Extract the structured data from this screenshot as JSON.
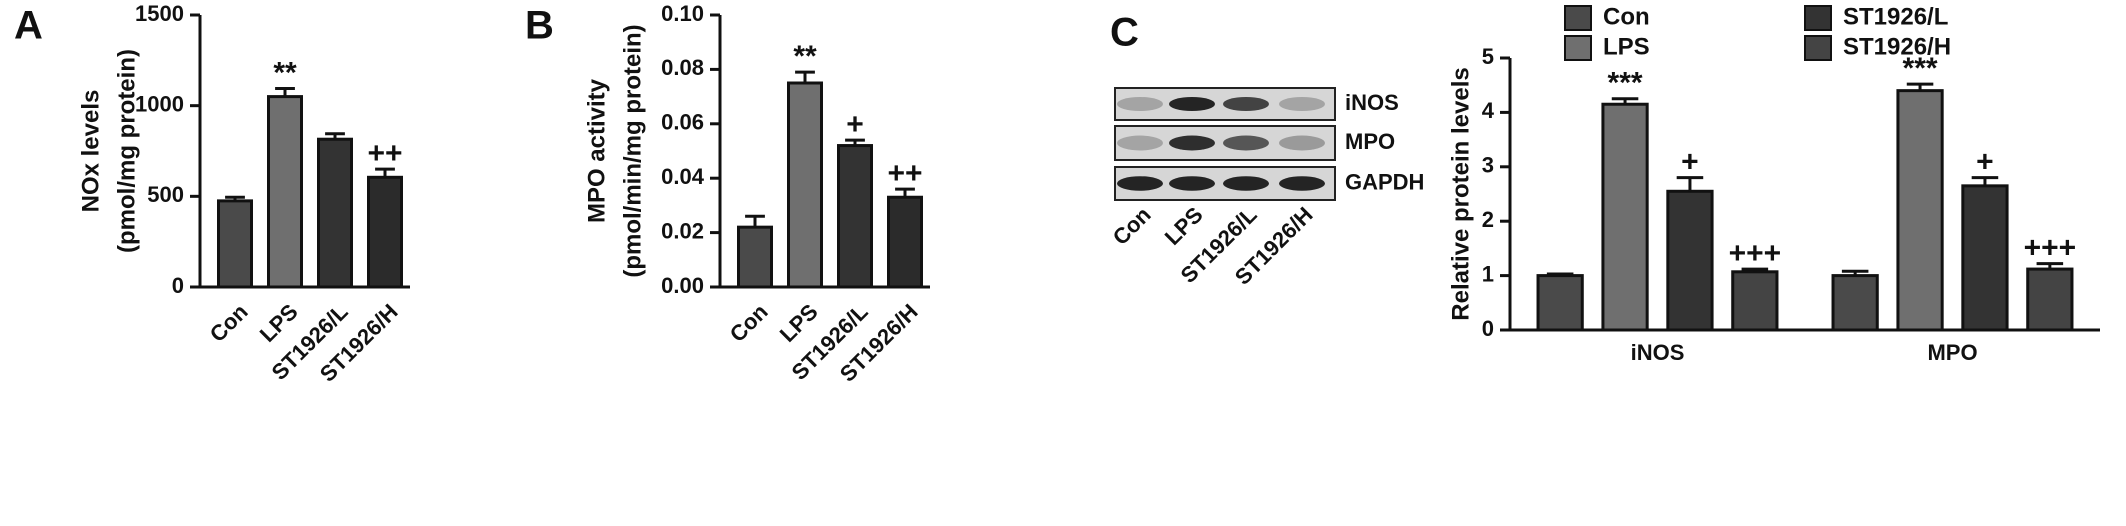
{
  "chart_data": [
    {
      "type": "bar",
      "panel_label": "A",
      "ylabel": [
        "NOx levels",
        "(pmol/mg protein)"
      ],
      "categories": [
        "Con",
        "LPS",
        "ST1926/L",
        "ST1926/H"
      ],
      "values": [
        475,
        1050,
        815,
        605
      ],
      "errors": [
        20,
        45,
        30,
        45
      ],
      "annotations": [
        null,
        "**",
        null,
        "++"
      ],
      "colors": [
        "#4a4a4a",
        "#6f6f6f",
        "#333333",
        "#2b2b2b"
      ],
      "ylim": [
        0,
        1500
      ],
      "yticks": [
        0,
        500,
        1000,
        1500
      ]
    },
    {
      "type": "bar",
      "panel_label": "B",
      "ylabel": [
        "MPO activity",
        "(pmol/min/mg protein)"
      ],
      "categories": [
        "Con",
        "LPS",
        "ST1926/L",
        "ST1926/H"
      ],
      "values": [
        0.022,
        0.075,
        0.052,
        0.033
      ],
      "errors": [
        0.004,
        0.004,
        0.002,
        0.003
      ],
      "annotations": [
        null,
        "**",
        "+",
        "++"
      ],
      "colors": [
        "#4a4a4a",
        "#6f6f6f",
        "#333333",
        "#2b2b2b"
      ],
      "ylim": [
        0,
        0.1
      ],
      "yticks": [
        {
          "value": 0,
          "label": "0.00"
        },
        {
          "value": 0.02,
          "label": "0.02"
        },
        {
          "value": 0.04,
          "label": "0.04"
        },
        {
          "value": 0.06,
          "label": "0.06"
        },
        {
          "value": 0.08,
          "label": "0.08"
        },
        {
          "value": 0.1,
          "label": "0.10"
        }
      ]
    },
    {
      "type": "grouped_bar",
      "ylabel": [
        "Relative protein levels"
      ],
      "categories": [
        "iNOS",
        "MPO"
      ],
      "series": [
        {
          "name": "Con",
          "color": "#4a4a4a",
          "values": [
            1.0,
            1.0
          ],
          "errors": [
            0.03,
            0.08
          ]
        },
        {
          "name": "LPS",
          "color": "#6f6f6f",
          "values": [
            4.15,
            4.4
          ],
          "errors": [
            0.1,
            0.12
          ],
          "annotations": [
            "***",
            "***"
          ]
        },
        {
          "name": "ST1926/L",
          "color": "#333333",
          "values": [
            2.55,
            2.65
          ],
          "errors": [
            0.25,
            0.15
          ],
          "annotations": [
            "+",
            "+"
          ]
        },
        {
          "name": "ST1926/H",
          "color": "#444444",
          "values": [
            1.07,
            1.12
          ],
          "errors": [
            0.05,
            0.1
          ],
          "annotations": [
            "+++",
            "+++"
          ]
        }
      ],
      "ylim": [
        0,
        5
      ],
      "yticks": [
        0,
        1,
        2,
        3,
        4,
        5
      ],
      "legend": "top"
    }
  ],
  "blot": {
    "panel_label": "C",
    "bands": [
      "iNOS",
      "MPO",
      "GAPDH"
    ],
    "lanes": [
      "Con",
      "LPS",
      "ST1926/L",
      "ST1926/H"
    ]
  }
}
